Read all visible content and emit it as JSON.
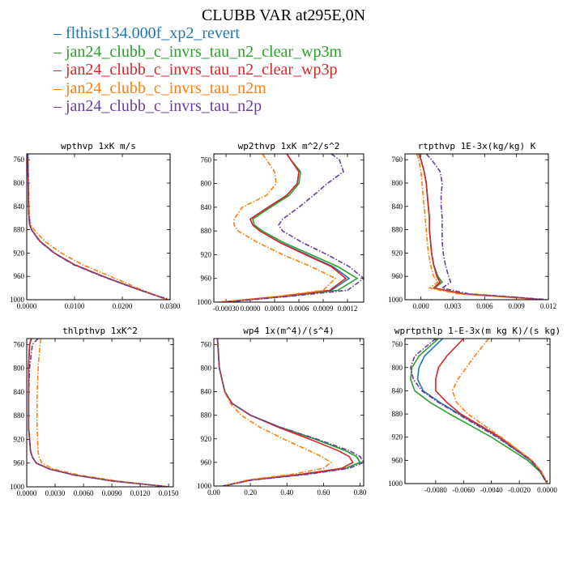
{
  "title": "CLUBB VAR at295E,0N",
  "legend": [
    {
      "label": "flthist134.000f_xp2_revert",
      "color": "#1f77b4",
      "style": "solid"
    },
    {
      "label": "jan24_clubb_c_invrs_tau_n2_clear_wp3m",
      "color": "#2ca02c",
      "style": "solid"
    },
    {
      "label": "jan24_clubb_c_invrs_tau_n2_clear_wp3p",
      "color": "#d62728",
      "style": "solid"
    },
    {
      "label": "jan24_clubb_c_invrs_tau_n2m",
      "color": "#ff7f0e",
      "style": "dashdot"
    },
    {
      "label": "jan24_clubb_c_invrs_tau_n2p",
      "color": "#6a3d9a",
      "style": "dashdot"
    }
  ],
  "chart_data": [
    {
      "type": "line",
      "title": "wpthvp  1xK m/s",
      "xlim": [
        0,
        0.03
      ],
      "ylim": [
        1000,
        750
      ],
      "xticks": [
        {
          "v": 0,
          "t": "0.0000"
        },
        {
          "v": 0.01,
          "t": "0.0100"
        },
        {
          "v": 0.02,
          "t": "0.0200"
        },
        {
          "v": 0.03,
          "t": "0.0300"
        }
      ],
      "yticks": [
        760,
        800,
        840,
        880,
        920,
        960,
        1000
      ],
      "y": [
        750,
        800,
        850,
        870,
        880,
        900,
        920,
        940,
        960,
        980,
        990,
        1000
      ],
      "series": [
        {
          "values": [
            0.0002,
            0.0003,
            0.0004,
            0.0006,
            0.001,
            0.0028,
            0.0058,
            0.01,
            0.016,
            0.0225,
            0.026,
            0.0295
          ]
        },
        {
          "values": [
            0.0002,
            0.0003,
            0.0004,
            0.0006,
            0.001,
            0.0028,
            0.0058,
            0.01,
            0.016,
            0.0225,
            0.026,
            0.0295
          ]
        },
        {
          "values": [
            0.0002,
            0.0003,
            0.0004,
            0.0006,
            0.001,
            0.0028,
            0.0058,
            0.01,
            0.016,
            0.0225,
            0.026,
            0.0295
          ]
        },
        {
          "values": [
            0.0003,
            0.0004,
            0.0005,
            0.0008,
            0.0015,
            0.0038,
            0.0072,
            0.0117,
            0.0175,
            0.0232,
            0.0262,
            0.0295
          ]
        },
        {
          "values": [
            0.0002,
            0.0003,
            0.0004,
            0.0006,
            0.001,
            0.0027,
            0.0057,
            0.0098,
            0.0158,
            0.0225,
            0.026,
            0.03
          ]
        }
      ]
    },
    {
      "type": "line",
      "title": "wp2thvp  1xK m^2/s^2",
      "xlim": [
        -0.00045,
        0.0014
      ],
      "ylim": [
        1000,
        750
      ],
      "xticks": [
        {
          "v": -0.0003,
          "t": "-0.00030"
        },
        {
          "v": 0,
          "t": "0.0000"
        },
        {
          "v": 0.0003,
          "t": "0.0003"
        },
        {
          "v": 0.0006,
          "t": "0.0006"
        },
        {
          "v": 0.0009,
          "t": "0.0009"
        },
        {
          "v": 0.0012,
          "t": "0.0012"
        }
      ],
      "yticks": [
        760,
        800,
        840,
        880,
        920,
        960,
        1000
      ],
      "y": [
        750,
        760,
        780,
        800,
        820,
        840,
        860,
        870,
        880,
        900,
        920,
        940,
        960,
        980,
        990,
        1000
      ],
      "series": [
        {
          "values": [
            0.00045,
            0.0005,
            0.0006,
            0.00058,
            0.00045,
            0.00022,
            0.0,
            3e-05,
            0.00012,
            0.00038,
            0.0007,
            0.00102,
            0.00122,
            0.001,
            0.0004,
            -0.00035
          ]
        },
        {
          "values": [
            0.00045,
            0.0005,
            0.00062,
            0.0006,
            0.00048,
            0.00025,
            3e-05,
            5e-05,
            0.00015,
            0.00042,
            0.00075,
            0.00108,
            0.00132,
            0.00108,
            0.00045,
            -0.00035
          ]
        },
        {
          "values": [
            0.00045,
            0.0005,
            0.0006,
            0.00058,
            0.00045,
            0.00022,
            0.0,
            3e-05,
            0.00012,
            0.00037,
            0.00068,
            0.001,
            0.00118,
            0.00098,
            0.0004,
            -0.00035
          ]
        },
        {
          "values": [
            0.00015,
            0.0002,
            0.0003,
            0.00032,
            0.0002,
            -0.0001,
            -0.0002,
            -0.0002,
            -0.00015,
            0.0001,
            0.0004,
            0.00075,
            0.00105,
            0.0009,
            0.00035,
            -0.0004
          ]
        },
        {
          "values": [
            0.001,
            0.0011,
            0.00115,
            0.00095,
            0.00078,
            0.0006,
            0.0004,
            0.00035,
            0.0004,
            0.00065,
            0.00095,
            0.00122,
            0.0014,
            0.0012,
            0.0005,
            -0.0003
          ]
        }
      ]
    },
    {
      "type": "line",
      "title": "rtpthvp  1E-3x(kg/kg) K",
      "xlim": [
        -0.0015,
        0.012
      ],
      "ylim": [
        1000,
        750
      ],
      "xticks": [
        {
          "v": 0,
          "t": "0.000"
        },
        {
          "v": 0.003,
          "t": "0.003"
        },
        {
          "v": 0.006,
          "t": "0.006"
        },
        {
          "v": 0.009,
          "t": "0.009"
        },
        {
          "v": 0.012,
          "t": "0.012"
        }
      ],
      "yticks": [
        760,
        800,
        840,
        880,
        920,
        960,
        1000
      ],
      "y": [
        750,
        760,
        780,
        800,
        820,
        840,
        860,
        880,
        900,
        920,
        940,
        960,
        970,
        980,
        990,
        995,
        1000
      ],
      "series": [
        {
          "values": [
            -0.0002,
            0.0,
            0.0003,
            0.0005,
            0.0006,
            0.0007,
            0.0008,
            0.0008,
            0.0009,
            0.001,
            0.0012,
            0.0015,
            0.0018,
            0.0012,
            0.004,
            0.008,
            0.0115
          ]
        },
        {
          "values": [
            -0.0002,
            0.0,
            0.0003,
            0.0005,
            0.0006,
            0.0007,
            0.0008,
            0.0008,
            0.0009,
            0.001,
            0.0012,
            0.0016,
            0.002,
            0.0013,
            0.004,
            0.008,
            0.0115
          ]
        },
        {
          "values": [
            -0.0002,
            0.0,
            0.0003,
            0.0005,
            0.0006,
            0.0007,
            0.0008,
            0.0008,
            0.0009,
            0.001,
            0.0012,
            0.0015,
            0.0018,
            0.0012,
            0.004,
            0.008,
            0.0115
          ]
        },
        {
          "values": [
            -0.0004,
            -0.0002,
            0.0,
            0.0001,
            0.0002,
            0.0003,
            0.0004,
            0.0005,
            0.0006,
            0.0007,
            0.0009,
            0.0012,
            0.0016,
            0.0008,
            0.0035,
            0.0075,
            0.0115
          ]
        },
        {
          "values": [
            0.0005,
            0.001,
            0.0018,
            0.002,
            0.0019,
            0.0019,
            0.002,
            0.002,
            0.002,
            0.0021,
            0.0023,
            0.0026,
            0.0028,
            0.002,
            0.0045,
            0.0085,
            0.012
          ]
        }
      ]
    },
    {
      "type": "line",
      "title": "thlpthvp  1xK^2",
      "xlim": [
        0,
        0.0155
      ],
      "ylim": [
        1000,
        750
      ],
      "xticks": [
        {
          "v": 0,
          "t": "0.0000"
        },
        {
          "v": 0.003,
          "t": "0.0030"
        },
        {
          "v": 0.006,
          "t": "0.0060"
        },
        {
          "v": 0.009,
          "t": "0.0090"
        },
        {
          "v": 0.012,
          "t": "0.0120"
        },
        {
          "v": 0.015,
          "t": "0.0150"
        }
      ],
      "yticks": [
        760,
        800,
        840,
        880,
        920,
        960,
        1000
      ],
      "y": [
        750,
        760,
        800,
        850,
        900,
        940,
        950,
        960,
        970,
        980,
        990,
        1000
      ],
      "series": [
        {
          "values": [
            0.0005,
            0.0003,
            0.0002,
            0.0002,
            0.0002,
            0.0004,
            0.0006,
            0.001,
            0.0024,
            0.005,
            0.009,
            0.015
          ]
        },
        {
          "values": [
            0.0005,
            0.0003,
            0.0002,
            0.0002,
            0.0002,
            0.0004,
            0.0006,
            0.001,
            0.0024,
            0.005,
            0.009,
            0.015
          ]
        },
        {
          "values": [
            0.0005,
            0.0003,
            0.0002,
            0.0002,
            0.0002,
            0.0004,
            0.0006,
            0.001,
            0.0024,
            0.005,
            0.009,
            0.015
          ]
        },
        {
          "values": [
            0.0015,
            0.0014,
            0.0012,
            0.0011,
            0.0011,
            0.0012,
            0.0013,
            0.0016,
            0.0028,
            0.0055,
            0.0095,
            0.015
          ]
        },
        {
          "values": [
            0.0012,
            0.0006,
            0.0003,
            0.0002,
            0.0002,
            0.0004,
            0.0006,
            0.001,
            0.0024,
            0.005,
            0.009,
            0.015
          ]
        }
      ]
    },
    {
      "type": "line",
      "title": "wp4  1x(m^4)/(s^4)",
      "xlim": [
        0,
        0.82
      ],
      "ylim": [
        1000,
        750
      ],
      "xticks": [
        {
          "v": 0,
          "t": "0.00"
        },
        {
          "v": 0.2,
          "t": "0.20"
        },
        {
          "v": 0.4,
          "t": "0.40"
        },
        {
          "v": 0.6,
          "t": "0.60"
        },
        {
          "v": 0.8,
          "t": "0.80"
        }
      ],
      "yticks": [
        760,
        800,
        840,
        880,
        920,
        960,
        1000
      ],
      "y": [
        750,
        800,
        840,
        860,
        880,
        900,
        920,
        940,
        950,
        960,
        970,
        980,
        990,
        1000
      ],
      "series": [
        {
          "values": [
            0.02,
            0.03,
            0.06,
            0.1,
            0.2,
            0.36,
            0.55,
            0.72,
            0.78,
            0.8,
            0.72,
            0.5,
            0.2,
            0.05
          ]
        },
        {
          "values": [
            0.02,
            0.03,
            0.06,
            0.1,
            0.2,
            0.36,
            0.55,
            0.72,
            0.78,
            0.8,
            0.72,
            0.5,
            0.2,
            0.05
          ]
        },
        {
          "values": [
            0.02,
            0.03,
            0.06,
            0.1,
            0.2,
            0.35,
            0.52,
            0.68,
            0.74,
            0.76,
            0.7,
            0.48,
            0.2,
            0.05
          ]
        },
        {
          "values": [
            0.02,
            0.03,
            0.06,
            0.09,
            0.15,
            0.25,
            0.38,
            0.52,
            0.59,
            0.64,
            0.6,
            0.43,
            0.18,
            0.05
          ]
        },
        {
          "values": [
            0.02,
            0.03,
            0.06,
            0.1,
            0.2,
            0.36,
            0.56,
            0.74,
            0.8,
            0.82,
            0.74,
            0.52,
            0.21,
            0.05
          ]
        }
      ]
    },
    {
      "type": "line",
      "title": "wprtpthlp  1-E-3x(m kg K)/(s kg)",
      "xlim": [
        -0.0102,
        0.0002
      ],
      "ylim": [
        1000,
        750
      ],
      "xticks": [
        {
          "v": -0.008,
          "t": "-0.0080"
        },
        {
          "v": -0.006,
          "t": "-0.0060"
        },
        {
          "v": -0.004,
          "t": "-0.0040"
        },
        {
          "v": -0.002,
          "t": "-0.0020"
        },
        {
          "v": 0,
          "t": "0.0000"
        }
      ],
      "yticks": [
        760,
        800,
        840,
        880,
        920,
        960,
        1000
      ],
      "y": [
        750,
        780,
        800,
        820,
        840,
        860,
        880,
        920,
        960,
        980,
        1000
      ],
      "series": [
        {
          "values": [
            -0.0075,
            -0.0088,
            -0.0092,
            -0.0093,
            -0.0089,
            -0.0077,
            -0.0063,
            -0.0035,
            -0.0012,
            -0.0005,
            0.0
          ]
        },
        {
          "values": [
            -0.0078,
            -0.0092,
            -0.0097,
            -0.0098,
            -0.0095,
            -0.0084,
            -0.007,
            -0.004,
            -0.0014,
            -0.0005,
            0.0
          ]
        },
        {
          "values": [
            -0.006,
            -0.0072,
            -0.0078,
            -0.008,
            -0.008,
            -0.0072,
            -0.0062,
            -0.0034,
            -0.0011,
            -0.0004,
            0.0
          ]
        },
        {
          "values": [
            -0.0042,
            -0.0052,
            -0.0058,
            -0.0064,
            -0.0068,
            -0.0065,
            -0.0057,
            -0.0033,
            -0.0011,
            -0.0004,
            0.0
          ]
        },
        {
          "values": [
            -0.008,
            -0.0095,
            -0.0098,
            -0.0096,
            -0.009,
            -0.0078,
            -0.0064,
            -0.0036,
            -0.0012,
            -0.0005,
            0.0
          ]
        }
      ]
    }
  ]
}
